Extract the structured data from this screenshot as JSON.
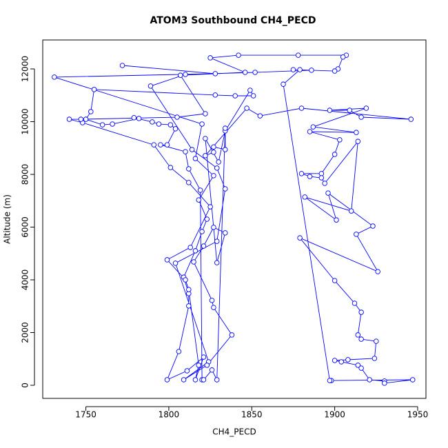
{
  "chart_data": {
    "type": "line",
    "title": "ATOM3 Southbound CH4_PECD",
    "x_label": "CH4_PECD",
    "y_label": "Altitude (m)",
    "color": "#0000ff",
    "markers": true,
    "xlim": [
      1724,
      1955
    ],
    "ylim": [
      -497,
      13098
    ],
    "xticks": [
      1750,
      1800,
      1850,
      1900,
      1950
    ],
    "yticks": [
      0,
      2000,
      4000,
      6000,
      8000,
      10000,
      12000
    ],
    "x": [
      1772,
      1828,
      1731,
      1820,
      1816,
      1827,
      1818,
      1823,
      1820,
      1816,
      1809,
      1812,
      1812,
      1806,
      1799,
      1811,
      1821,
      1816,
      1818,
      1812,
      1810,
      1799,
      1813,
      1825,
      1812,
      1801,
      1791,
      1748,
      1740,
      1747,
      1805,
      1822,
      1807,
      1846,
      1825,
      1842,
      1878,
      1907,
      1905,
      1902,
      1900,
      1875,
      1886,
      1852,
      1810,
      1789,
      1814,
      1829,
      1834,
      1829,
      1804,
      1824,
      1809,
      1823,
      1838,
      1827,
      1826,
      1815,
      1821,
      1827,
      1834,
      1829,
      1822,
      1830,
      1834,
      1849,
      1851,
      1840,
      1828,
      1755,
      1753,
      1750,
      1760,
      1766,
      1782,
      1779,
      1790,
      1794,
      1801,
      1804,
      1799,
      1795,
      1810,
      1812,
      1819,
      1820,
      1821,
      1826,
      1829,
      1834,
      1834,
      1827,
      1827,
      1822,
      1847,
      1855,
      1880,
      1946,
      1916,
      1909,
      1897,
      1919,
      1887,
      1913,
      1885,
      1903,
      1900,
      1892,
      1880,
      1885,
      1892,
      1894,
      1914,
      1910,
      1882,
      1901,
      1896,
      1923,
      1913,
      1926,
      1879,
      1900,
      1912,
      1916,
      1914,
      1916,
      1925,
      1924,
      1908,
      1900,
      1904,
      1914,
      1916,
      1921,
      1930,
      1930,
      1947,
      1898,
      1897,
      1869,
      1879
    ],
    "y": [
      12130,
      11820,
      11690,
      9910,
      8600,
      7950,
      7030,
      6300,
      5830,
      5100,
      4100,
      3480,
      3010,
      1280,
      210,
      550,
      1070,
      210,
      760,
      3630,
      4000,
      4760,
      5230,
      6770,
      7690,
      8260,
      9120,
      9960,
      10090,
      10090,
      10170,
      10300,
      11760,
      11870,
      12420,
      12520,
      12520,
      12520,
      12450,
      12000,
      11920,
      11970,
      11950,
      11870,
      11790,
      11350,
      8940,
      8240,
      7450,
      5460,
      4630,
      890,
      210,
      760,
      1910,
      2950,
      3220,
      4680,
      5280,
      5990,
      5780,
      4650,
      9360,
      8470,
      9650,
      11190,
      10980,
      10980,
      11010,
      11220,
      10380,
      10090,
      9880,
      9910,
      10120,
      10150,
      9990,
      9910,
      9880,
      9730,
      9120,
      9120,
      8860,
      8210,
      7400,
      210,
      210,
      580,
      210,
      9750,
      8940,
      9040,
      8840,
      8710,
      10510,
      10220,
      10510,
      10090,
      10170,
      10430,
      10430,
      10510,
      9800,
      9590,
      9620,
      9310,
      8760,
      8030,
      8030,
      7920,
      7870,
      7660,
      9250,
      6610,
      7140,
      6270,
      7290,
      6040,
      5730,
      4310,
      5590,
      3970,
      3110,
      2770,
      1910,
      1750,
      1670,
      1020,
      970,
      940,
      890,
      760,
      650,
      210,
      160,
      80,
      210,
      180,
      180,
      11420,
      11970
    ]
  }
}
